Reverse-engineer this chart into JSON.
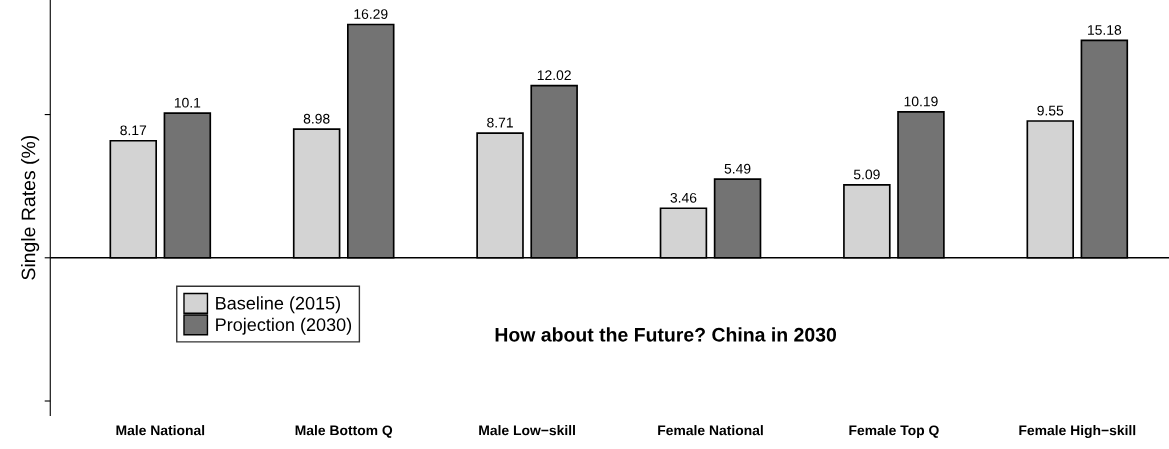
{
  "chart_data": {
    "type": "bar",
    "title": "How about the Future? China in 2030",
    "ylabel": "Single Rates (%)",
    "categories": [
      "Male National",
      "Male Bottom Q",
      "Male Low−skill",
      "Female National",
      "Female Top Q",
      "Female High−skill"
    ],
    "series": [
      {
        "name": "Baseline (2015)",
        "color": "#d3d3d3",
        "values": [
          8.17,
          8.98,
          8.71,
          3.46,
          5.09,
          9.55
        ]
      },
      {
        "name": "Projection (2030)",
        "color": "#737373",
        "values": [
          10.1,
          16.29,
          12.02,
          5.49,
          10.19,
          15.18
        ]
      }
    ],
    "ylim": [
      -11,
      18
    ],
    "yticks": [
      {
        "value": -10,
        "label": null
      },
      {
        "value": 0,
        "label": null
      },
      {
        "value": 10,
        "label": null
      }
    ],
    "tick_labels": "x",
    "ref_lines": [
      {
        "axis": "y",
        "value": 0,
        "color": "#000000"
      }
    ],
    "data_labels": true,
    "legend": "bottom left",
    "grid": false
  }
}
